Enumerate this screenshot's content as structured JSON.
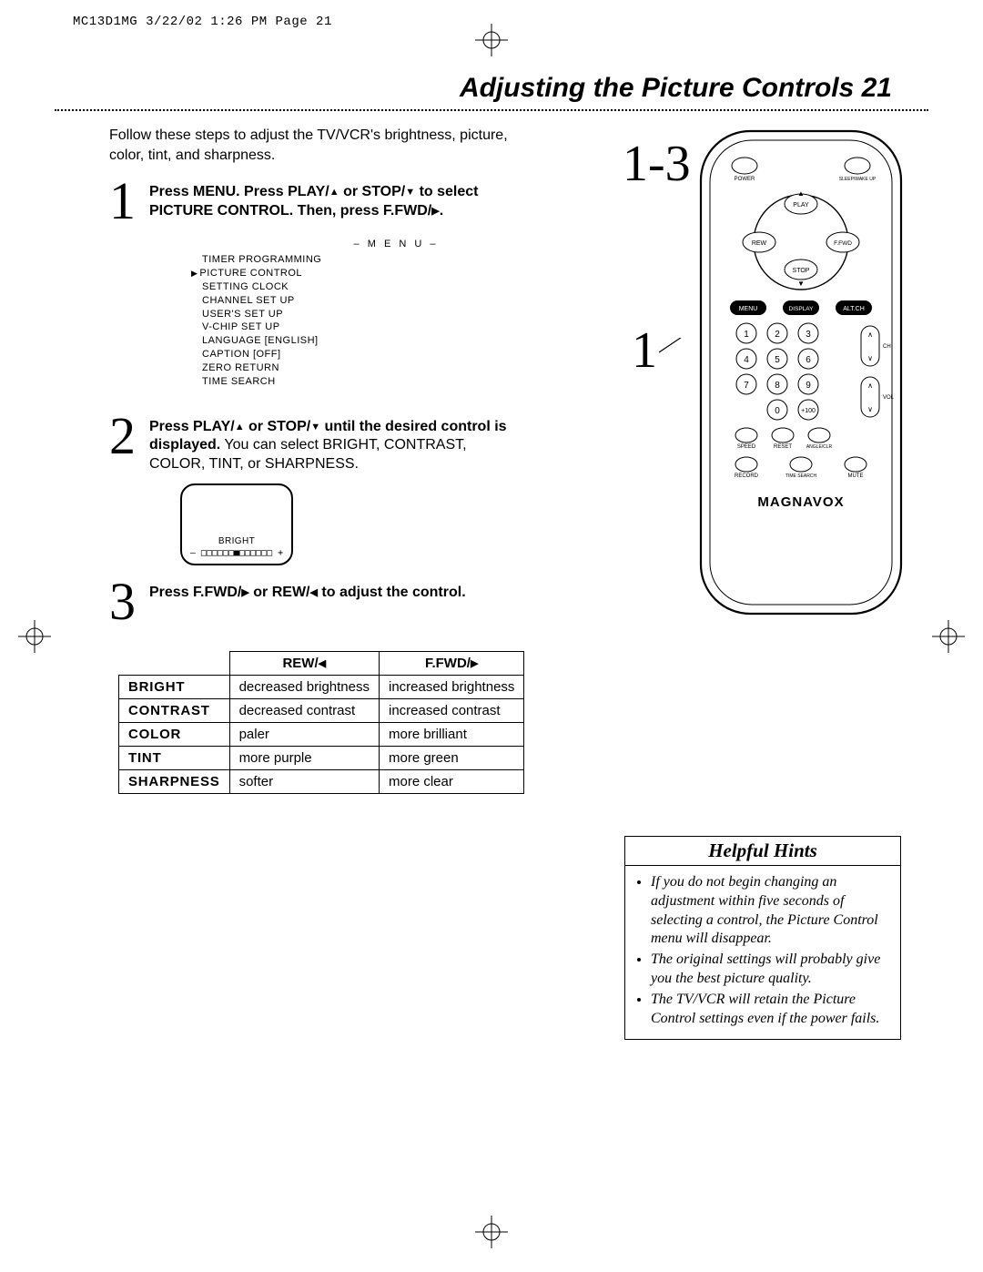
{
  "print_header": "MC13D1MG  3/22/02  1:26 PM  Page 21",
  "page_title": "Adjusting the Picture Controls  21",
  "intro": "Follow these steps to adjust the TV/VCR's brightness, picture, color, tint, and sharpness.",
  "steps": {
    "s1_pre": "Press MENU. Press PLAY/",
    "s1_mid1": " or STOP/",
    "s1_mid2": " to select PICTURE CONTROL. Then, press F.FWD/",
    "s1_end": ".",
    "s2_bold_a": "Press PLAY/",
    "s2_bold_b": " or STOP/",
    "s2_bold_c": " until the desired control is displayed.",
    "s2_rest": " You can select BRIGHT, CONTRAST, COLOR, TINT, or SHARPNESS.",
    "s3_bold_a": "Press F.FWD/",
    "s3_bold_b": " or REW/",
    "s3_bold_c": " to adjust the control."
  },
  "menu": {
    "title": "– M E N U –",
    "items": [
      {
        "text": "TIMER PROGRAMMING",
        "ptr": false
      },
      {
        "text": "PICTURE CONTROL",
        "ptr": true
      },
      {
        "text": "SETTING CLOCK",
        "ptr": false
      },
      {
        "text": "CHANNEL SET UP",
        "ptr": false
      },
      {
        "text": "USER'S SET UP",
        "ptr": false
      },
      {
        "text": "V-CHIP SET UP",
        "ptr": false
      },
      {
        "text": "LANGUAGE [ENGLISH]",
        "ptr": false
      },
      {
        "text": "CAPTION [OFF]",
        "ptr": false
      },
      {
        "text": "ZERO RETURN",
        "ptr": false
      },
      {
        "text": "TIME SEARCH",
        "ptr": false
      }
    ]
  },
  "bright_label": "BRIGHT",
  "bright_bar": "– □□□□□□■□□□□□□ +",
  "table": {
    "head_rew": "REW/",
    "head_ffwd": "F.FWD/",
    "rows": [
      {
        "label": "BRIGHT",
        "rew": "decreased brightness",
        "ffwd": "increased brightness"
      },
      {
        "label": "CONTRAST",
        "rew": "decreased contrast",
        "ffwd": "increased contrast"
      },
      {
        "label": "COLOR",
        "rew": "paler",
        "ffwd": "more brilliant"
      },
      {
        "label": "TINT",
        "rew": "more purple",
        "ffwd": "more green"
      },
      {
        "label": "SHARPNESS",
        "rew": "softer",
        "ffwd": "more clear"
      }
    ]
  },
  "callout13": "1-3",
  "callout1": "1",
  "remote": {
    "brand": "MAGNAVOX",
    "power": "POWER",
    "sleep": "SLEEP/WAKE UP",
    "play": "PLAY",
    "rew": "REW",
    "stop": "STOP",
    "ffwd": "F.FWD",
    "menu": "MENU",
    "display": "DISPLAY",
    "altch": "ALT.CH",
    "ch": "CH",
    "vol": "VOL",
    "plus100": "+100",
    "speed": "SPEED",
    "reset": "RESET",
    "angle": "ANGLE/CLR",
    "record": "RECORD",
    "timesearch": "TIME SEARCH",
    "mute": "MUTE"
  },
  "hints": {
    "title": "Helpful Hints",
    "items": [
      "If you do not begin changing an adjustment within five seconds of selecting a control, the Picture Control menu will disappear.",
      "The original settings will probably give you the best picture quality.",
      "The TV/VCR will retain the Picture Control settings even if the power fails."
    ]
  }
}
